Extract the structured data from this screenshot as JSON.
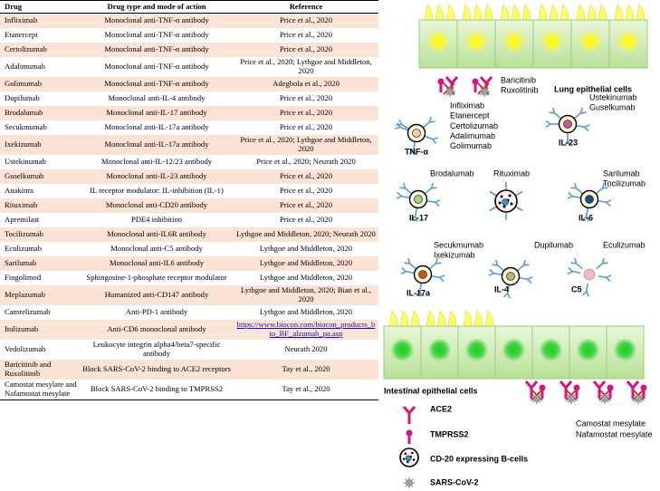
{
  "table": {
    "headers": [
      "Drug",
      "Drug type and mode of action",
      "Reference"
    ],
    "rows": [
      [
        "Infliximab",
        "Monoclonal anti-TNF-α antibody",
        "Price et al., 2020"
      ],
      [
        "Etanercept",
        "Monoclonal anti-TNF-α antibody",
        "Price et al., 2020"
      ],
      [
        "Certolizumab",
        "Monoclonal anti-TNF-α antibody",
        "Price et al., 2020"
      ],
      [
        "Adalimumab",
        "Monoclonal anti-TNF-α antibody",
        "Price et al., 2020; Lythgoe and Middleton, 2020"
      ],
      [
        "Golimumab",
        "Monoclonal anti-TNF-α antibody",
        "Adegbola et al., 2020"
      ],
      [
        "Dupilumab",
        "Monoclonal anti-IL-4 antibody",
        "Price et al., 2020"
      ],
      [
        "Brodalumab",
        "Monoclonal anti-IL-17 antibody",
        "Price et al., 2020"
      ],
      [
        "Secukmumab",
        "Monoclonal anti-IL-17a antibody",
        "Price et al., 2020"
      ],
      [
        "Ixekizumab",
        "Monoclonal anti-IL-17a antibody",
        "Price et al., 2020; Lythgoe and Middleton, 2020"
      ],
      [
        "Ustekinumab",
        "Monoclonal anti-IL-12/23 antibody",
        "Price et al., 2020; Neurath 2020"
      ],
      [
        "Guselkumab",
        "Monoclonal anti-IL-23 antibody",
        "Price et al., 2020"
      ],
      [
        "Anakinra",
        "IL receptor modulator: IL-inhibition (IL-1)",
        "Price et al., 2020"
      ],
      [
        "Rituximab",
        "Monoclonal anti-CD20 antibody",
        "Price et al., 2020"
      ],
      [
        "Apremilast",
        "PDE4 inhibition",
        "Price et al., 2020"
      ],
      [
        "Tocilizumab",
        "Monoclonal anti-IL6R antibody",
        "Lythgoe and Middleton, 2020; Neurath 2020"
      ],
      [
        "Eculizumab",
        "Monoclonal anti-C5 antibody",
        "Lythgoe and Middleton, 2020"
      ],
      [
        "Sarilumab",
        "Monoclonal anti-IL6 antibody",
        "Lythgoe and Middleton, 2020"
      ],
      [
        "Fingolimod",
        "Sphingosine-1-phosphate receptor modulator",
        "Lythgoe and Middleton, 2020"
      ],
      [
        "Meplazumab",
        "Humanized anti-CD147 antibody",
        "Lythgoe and Middleton, 2020; Bian et al., 2020"
      ],
      [
        "Camrelizumab",
        "Anti-PD-1 antibody",
        "Lythgoe and Middleton, 2020"
      ],
      [
        "Itolizumab",
        "Anti-CD6 monoclonal antibody",
        "https://www.biocon.com/biocon_products_bio_BF_alzumab_pa.asp"
      ],
      [
        "Vedolizumab",
        "Leukocyte integrin alpha4/beta7-specific antibody",
        "Neurath 2020"
      ],
      [
        "Baricitinib and Ruxolitinib",
        "Block SARS-CoV-2 binding to ACE2 receptors",
        "Tay et al., 2020"
      ],
      [
        "Camostat mesylate and Nafamostat mesylate",
        "Block SARS-CoV-2 binding to TMPRSS2",
        "Tay et al., 2020"
      ]
    ]
  },
  "diagram": {
    "lung_label": "Lung epithelial cells",
    "lung_drugs": [
      "Baricitinib",
      "Ruxolitinib"
    ],
    "intestinal_label": "Intestinal epithelial cells",
    "intestinal_drugs": [
      "Camostat mesylate",
      "Nafamostat mesylate"
    ],
    "cytokines": [
      {
        "label": "TNF-α",
        "drugs": [
          "Infliximab",
          "Etanercept",
          "Certolizumab",
          "Adalimumab",
          "Golimumab"
        ]
      },
      {
        "label": "IL-23",
        "drugs": [
          "Ustekinumab",
          "Guselkumab"
        ]
      },
      {
        "label": "IL-17",
        "drugs": [
          "Brodalumab"
        ]
      },
      {
        "drugs": [
          "Rituximab"
        ]
      },
      {
        "label": "IL-6",
        "drugs": [
          "Sarilumab",
          "Tocilizumab"
        ]
      },
      {
        "label": "IL-17a",
        "drugs": [
          "Secukmumab",
          "Ixekizumab"
        ]
      },
      {
        "label": "IL-4",
        "drugs": [
          "Dupilumab"
        ]
      },
      {
        "label": "C5",
        "drugs": [
          "Eculizumab"
        ]
      }
    ],
    "legend": [
      "ACE2",
      "TMPRSS2",
      "CD-20 expressing B-cells",
      "SARS-CoV-2"
    ]
  }
}
